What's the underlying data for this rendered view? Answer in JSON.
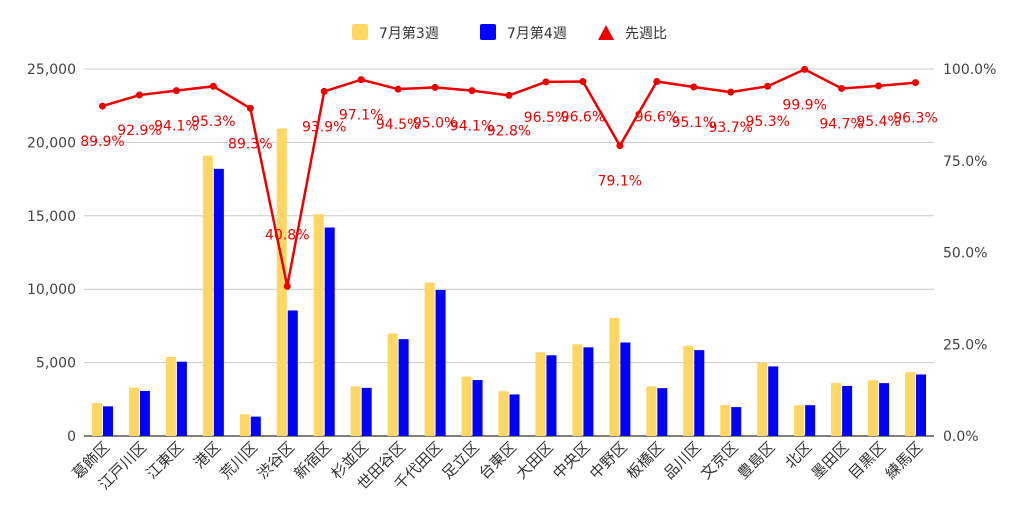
{
  "chart_data": {
    "type": "bar",
    "title": "",
    "xlabel": "",
    "ylabel": "",
    "ylim": [
      0,
      25000
    ],
    "y2lim": [
      0,
      100
    ],
    "y_ticks": [
      "0",
      "5,000",
      "10,000",
      "15,000",
      "20,000",
      "25,000"
    ],
    "y2_ticks": [
      "0.0%",
      "25.0%",
      "50.0%",
      "75.0%",
      "100.0%"
    ],
    "grid": true,
    "legend_position": "top",
    "categories": [
      "葛飾区",
      "江戸川区",
      "江東区",
      "港区",
      "荒川区",
      "渋谷区",
      "新宿区",
      "杉並区",
      "世田谷区",
      "千代田区",
      "足立区",
      "台東区",
      "大田区",
      "中央区",
      "中野区",
      "板橋区",
      "品川区",
      "文京区",
      "豊島区",
      "北区",
      "墨田区",
      "目黒区",
      "練馬区"
    ],
    "series": [
      {
        "name": "7月第3週",
        "kind": "bar",
        "axis": "left",
        "color": "#fdd663",
        "values": [
          2250,
          3300,
          5380,
          19100,
          1480,
          20950,
          15100,
          3380,
          6980,
          10450,
          4050,
          3050,
          5700,
          6250,
          8050,
          3380,
          6150,
          2100,
          4980,
          2100,
          3600,
          3800,
          4350
        ]
      },
      {
        "name": "7月第4週",
        "kind": "bar",
        "axis": "left",
        "color": "#0000ff",
        "values": [
          2020,
          3070,
          5060,
          18200,
          1320,
          8550,
          14200,
          3280,
          6600,
          9950,
          3810,
          2830,
          5500,
          6040,
          6370,
          3260,
          5850,
          1970,
          4740,
          2100,
          3410,
          3600,
          4190
        ]
      },
      {
        "name": "先週比",
        "kind": "line",
        "axis": "right",
        "color": "#ee0000",
        "values": [
          89.9,
          92.9,
          94.1,
          95.3,
          89.3,
          40.8,
          93.9,
          97.1,
          94.5,
          95.0,
          94.1,
          92.8,
          96.5,
          96.6,
          79.1,
          96.6,
          95.1,
          93.7,
          95.3,
          99.9,
          94.7,
          95.4,
          96.3
        ],
        "labels": [
          "89.9%",
          "92.9%",
          "94.1%",
          "95.3%",
          "89.3%",
          "40.8%",
          "93.9%",
          "97.1%",
          "94.5%",
          "95.0%",
          "94.1%",
          "92.8%",
          "96.5%",
          "96.6%",
          "79.1%",
          "96.6%",
          "95.1%",
          "93.7%",
          "95.3%",
          "99.9%",
          "94.7%",
          "95.4%",
          "96.3%"
        ]
      }
    ]
  }
}
